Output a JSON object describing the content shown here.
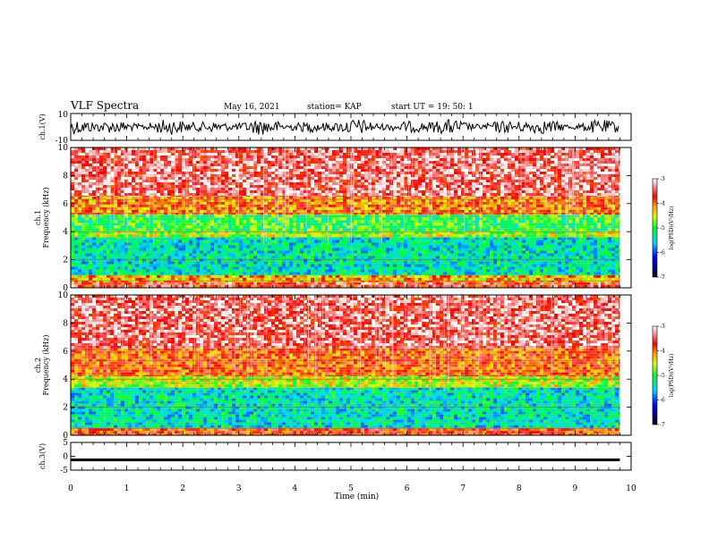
{
  "header": {
    "title": "VLF Spectra",
    "date": "May 16, 2021",
    "station": "station= KAP",
    "start": "start  UT =   19: 50: 1"
  },
  "chart_data": [
    {
      "type": "line",
      "panel": "ch1-waveform",
      "ylabel": "ch.1(V)",
      "ylim": [
        -10,
        10
      ],
      "yticks": [
        "10",
        "-10"
      ],
      "xlim": [
        0,
        10
      ],
      "series": [
        {
          "values_description_free": true,
          "amplitude_range": [
            -6,
            6
          ]
        }
      ]
    },
    {
      "type": "heatmap",
      "panel": "ch1-spectrogram",
      "ylabel_top": "ch.1",
      "ylabel": "Frequency  (kHz)",
      "ylim": [
        0,
        10
      ],
      "yticks": [
        "0",
        "2",
        "4",
        "6",
        "8",
        "10"
      ],
      "xlim": [
        0,
        9.8
      ],
      "colorbar": {
        "label": "log(PSD)(V²/Hz)",
        "range": [
          -7,
          -3
        ],
        "ticks": [
          "-3",
          "-4",
          "-5",
          "-6",
          "-7"
        ]
      },
      "bands": [
        {
          "from": 0,
          "to": 0.4,
          "level": -3.6
        },
        {
          "from": 0.4,
          "to": 0.9,
          "level": -4.2
        },
        {
          "from": 0.9,
          "to": 3.6,
          "level": -5.4
        },
        {
          "from": 3.6,
          "to": 4.0,
          "level": -4.6
        },
        {
          "from": 4.0,
          "to": 5.2,
          "level": -5.0
        },
        {
          "from": 5.2,
          "to": 6.5,
          "level": -4.0
        },
        {
          "from": 6.5,
          "to": 10,
          "level": -3.4
        }
      ]
    },
    {
      "type": "heatmap",
      "panel": "ch2-spectrogram",
      "ylabel_top": "ch.2",
      "ylabel": "Frequency  (kHz)",
      "ylim": [
        0,
        10
      ],
      "yticks": [
        "0",
        "2",
        "4",
        "6",
        "8",
        "10"
      ],
      "xlim": [
        0,
        9.8
      ],
      "colorbar": {
        "label": "log(PSD)(V²/Hz)",
        "range": [
          -7,
          -3
        ],
        "ticks": [
          "-3",
          "-4",
          "-5",
          "-6",
          "-7"
        ]
      },
      "bands": [
        {
          "from": 0,
          "to": 0.5,
          "level": -3.8
        },
        {
          "from": 0.5,
          "to": 3.4,
          "level": -5.4
        },
        {
          "from": 3.4,
          "to": 4.2,
          "level": -4.6
        },
        {
          "from": 4.2,
          "to": 6.2,
          "level": -3.9
        },
        {
          "from": 6.2,
          "to": 10,
          "level": -3.4
        }
      ]
    },
    {
      "type": "line",
      "panel": "ch3-waveform",
      "ylabel": "ch.3(V)",
      "ylim": [
        -5,
        5
      ],
      "yticks": [
        "5",
        "0",
        "-5"
      ],
      "xlim": [
        0,
        10
      ],
      "series": [
        {
          "level": -1.3,
          "amplitude": 0.5
        }
      ]
    }
  ],
  "xaxis": {
    "label": "Time  (min)",
    "ticks": [
      "0",
      "1",
      "2",
      "3",
      "4",
      "5",
      "6",
      "7",
      "8",
      "9",
      "10"
    ]
  }
}
